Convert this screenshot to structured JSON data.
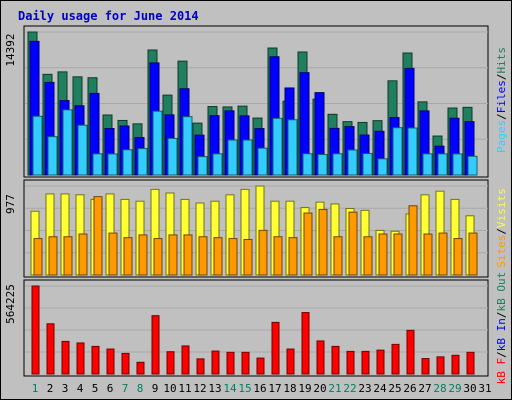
{
  "chart_data": {
    "type": "bar",
    "title": "Daily usage for June 2014",
    "categories": [
      "1",
      "2",
      "3",
      "4",
      "5",
      "6",
      "7",
      "8",
      "9",
      "10",
      "11",
      "12",
      "13",
      "14",
      "15",
      "16",
      "17",
      "18",
      "19",
      "20",
      "21",
      "22",
      "23",
      "24",
      "25",
      "26",
      "27",
      "28",
      "29",
      "30",
      "31"
    ],
    "weekend_days": [
      "1",
      "7",
      "8",
      "14",
      "15",
      "21",
      "22",
      "28",
      "29"
    ],
    "colors": {
      "title": "#0000cc",
      "hits": "#1f7f5f",
      "files": "#0000ff",
      "pages": "#33ccff",
      "visits": "#ffff33",
      "sites": "#ff9900",
      "kbytes": "#ff0000",
      "weekday_label": "#000000",
      "weekend_label": "#00805f"
    },
    "panels": [
      {
        "name": "requests",
        "max_label": "14392",
        "ylim": [
          0,
          14392
        ],
        "legend": [
          {
            "text": "Pages",
            "color": "#33ccff"
          },
          {
            "text": "/",
            "color": "#000000"
          },
          {
            "text": "Files",
            "color": "#0000ff"
          },
          {
            "text": "/",
            "color": "#000000"
          },
          {
            "text": "Hits",
            "color": "#1f7f5f"
          }
        ],
        "series": [
          {
            "name": "Hits",
            "values": [
              14392,
              10130,
              10380,
              9880,
              9790,
              6040,
              5490,
              5150,
              12580,
              8040,
              11460,
              5220,
              6890,
              6850,
              6930,
              5730,
              12780,
              7430,
              12380,
              7630,
              6110,
              5370,
              5290,
              5470,
              9480,
              12280,
              7360,
              3920,
              6740,
              6810,
              0
            ]
          },
          {
            "name": "Files",
            "values": [
              13450,
              9320,
              7490,
              6970,
              8210,
              4680,
              4930,
              3770,
              11280,
              6050,
              8680,
              4010,
              5970,
              6460,
              5950,
              4670,
              11900,
              8760,
              10300,
              8290,
              4690,
              4870,
              4020,
              4400,
              5780,
              10730,
              6450,
              2900,
              5710,
              5370,
              0
            ]
          },
          {
            "name": "Pages",
            "values": [
              5910,
              3860,
              6560,
              5010,
              2130,
              2120,
              2540,
              2660,
              6420,
              3680,
              5870,
              1850,
              2130,
              3520,
              3520,
              2700,
              5700,
              5560,
              2140,
              2060,
              2140,
              2520,
              2160,
              1630,
              4760,
              4730,
              2130,
              2130,
              2120,
              1880,
              0
            ]
          }
        ]
      },
      {
        "name": "visits",
        "max_label": "977",
        "ylim": [
          0,
          977
        ],
        "legend": [
          {
            "text": "Sites",
            "color": "#ff9900"
          },
          {
            "text": "/",
            "color": "#000000"
          },
          {
            "text": "Visits",
            "color": "#ffff33"
          }
        ],
        "series": [
          {
            "name": "Visits",
            "values": [
              700,
              890,
              890,
              880,
              830,
              890,
              830,
              810,
              940,
              900,
              830,
              790,
              810,
              880,
              940,
              977,
              810,
              810,
              740,
              800,
              780,
              730,
              710,
              490,
              480,
              670,
              880,
              920,
              830,
              650,
              0
            ]
          },
          {
            "name": "Sites",
            "values": [
              400,
              420,
              420,
              450,
              860,
              460,
              410,
              440,
              400,
              440,
              440,
              420,
              410,
              400,
              390,
              490,
              420,
              410,
              680,
              720,
              420,
              690,
              420,
              450,
              450,
              760,
              450,
              460,
              400,
              460,
              0
            ]
          }
        ]
      },
      {
        "name": "traffic",
        "max_label": "564225",
        "ylim": [
          0,
          564225
        ],
        "legend": [
          {
            "text": "kB F",
            "color": "#ff0000"
          },
          {
            "text": "/",
            "color": "#000000"
          },
          {
            "text": "kB In",
            "color": "#0000ff"
          },
          {
            "text": "/",
            "color": "#000000"
          },
          {
            "text": "kB Out",
            "color": "#1f7f5f"
          }
        ],
        "series": [
          {
            "name": "kB F",
            "values": [
              564225,
              322000,
              209000,
              199000,
              177000,
              160000,
              132000,
              75000,
              374000,
              143000,
              180000,
              97000,
              147000,
              139000,
              139000,
              102000,
              331000,
              160000,
              394000,
              212000,
              177000,
              145000,
              145000,
              153000,
              190000,
              280000,
              99000,
              110000,
              120000,
              139000,
              0
            ]
          }
        ]
      }
    ]
  }
}
